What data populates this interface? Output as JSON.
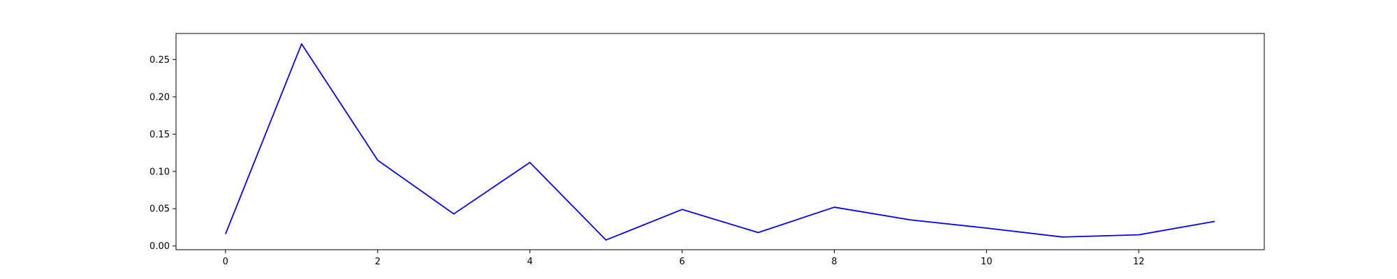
{
  "chart_data": {
    "type": "line",
    "title": "",
    "xlabel": "",
    "ylabel": "",
    "x": [
      0,
      1,
      2,
      3,
      4,
      5,
      6,
      7,
      8,
      9,
      10,
      11,
      12,
      13
    ],
    "series": [
      {
        "values": [
          0.016,
          0.271,
          0.115,
          0.043,
          0.112,
          0.008,
          0.049,
          0.018,
          0.052,
          0.035,
          0.024,
          0.012,
          0.015,
          0.033
        ],
        "color": "#0000ff"
      }
    ],
    "xlim": [
      -0.65,
      13.65
    ],
    "ylim": [
      -0.005,
      0.285
    ],
    "xticks": [
      0,
      2,
      4,
      6,
      8,
      10,
      12
    ],
    "xtick_labels": [
      "0",
      "2",
      "4",
      "6",
      "8",
      "10",
      "12"
    ],
    "yticks": [
      0.0,
      0.05,
      0.1,
      0.15,
      0.2,
      0.25
    ],
    "ytick_labels": [
      "0.00",
      "0.05",
      "0.10",
      "0.15",
      "0.20",
      "0.25"
    ],
    "grid": false,
    "legend": "none"
  }
}
